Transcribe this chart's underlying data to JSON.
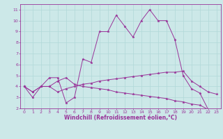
{
  "xlabel": "Windchill (Refroidissement éolien,°C)",
  "background_color": "#cce8e8",
  "line_color": "#993399",
  "xlim": [
    -0.5,
    23.5
  ],
  "ylim": [
    2,
    11.5
  ],
  "yticks": [
    2,
    3,
    4,
    5,
    6,
    7,
    8,
    9,
    10,
    11
  ],
  "xticks": [
    0,
    1,
    2,
    3,
    4,
    5,
    6,
    7,
    8,
    9,
    10,
    11,
    12,
    13,
    14,
    15,
    16,
    17,
    18,
    19,
    20,
    21,
    22,
    23
  ],
  "lines": [
    {
      "x": [
        0,
        1,
        2,
        3,
        4,
        5,
        6,
        7,
        8,
        9,
        10,
        11,
        12,
        13,
        14,
        15,
        16,
        17,
        18,
        19,
        20,
        21,
        22,
        23
      ],
      "y": [
        4.0,
        3.0,
        4.0,
        4.8,
        4.8,
        2.5,
        3.0,
        6.5,
        6.2,
        9.0,
        9.0,
        10.5,
        9.5,
        8.5,
        10.0,
        11.0,
        10.0,
        10.0,
        8.3,
        5.0,
        3.8,
        3.4,
        1.9,
        1.9
      ]
    },
    {
      "x": [
        0,
        1,
        2,
        3,
        4,
        5,
        6,
        7,
        8,
        9,
        10,
        11,
        12,
        13,
        14,
        15,
        16,
        17,
        18,
        19,
        20,
        21,
        22,
        23
      ],
      "y": [
        4.0,
        3.5,
        4.0,
        4.0,
        3.5,
        3.8,
        4.0,
        4.2,
        4.3,
        4.5,
        4.6,
        4.7,
        4.8,
        4.9,
        5.0,
        5.1,
        5.2,
        5.3,
        5.3,
        5.4,
        4.5,
        4.0,
        3.5,
        3.3
      ]
    },
    {
      "x": [
        0,
        1,
        2,
        3,
        4,
        5,
        6,
        7,
        8,
        9,
        10,
        11,
        12,
        13,
        14,
        15,
        16,
        17,
        18,
        19,
        20,
        21,
        22,
        23
      ],
      "y": [
        4.0,
        3.5,
        4.0,
        4.0,
        4.5,
        4.8,
        4.2,
        4.0,
        3.9,
        3.8,
        3.7,
        3.5,
        3.4,
        3.3,
        3.2,
        3.1,
        3.0,
        2.9,
        2.7,
        2.6,
        2.4,
        2.3,
        1.9,
        1.9
      ]
    }
  ],
  "grid_color": "#b0d8d8",
  "tick_fontsize": 4.5,
  "xlabel_fontsize": 5.5
}
